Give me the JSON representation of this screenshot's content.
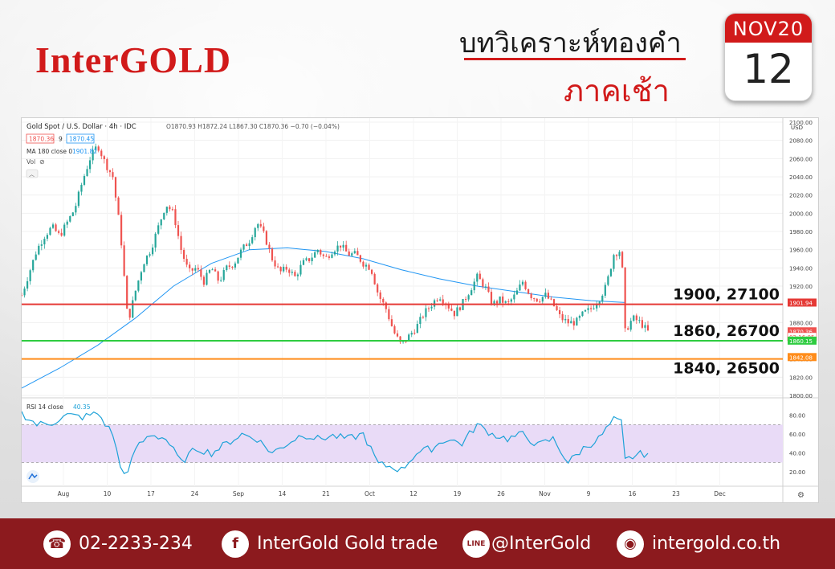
{
  "header": {
    "brand": "InterGOLD",
    "title_line1": "บทวิเคราะห์ทองคำ",
    "title_line2": "ภาคเช้า",
    "calendar_month": "NOV20",
    "calendar_day": "12"
  },
  "chart_info": {
    "symbol_line": "Gold Spot / U.S. Dollar · 4h · IDC",
    "ohlc": "O1870.93  H1872.24  L1867.30  C1870.36  −0.70 (−0.04%)",
    "bid": "1870.36",
    "spread": "9",
    "ask": "1870.45",
    "ma_label": "MA 180 close 0",
    "ma_value": "1901.82",
    "vol_label": "Vol",
    "rsi_label": "RSI 14 close",
    "rsi_value": "40.35",
    "currency": "USD",
    "price_tags": {
      "ma": "1901.94",
      "close": "1870.36",
      "countdown": "02:16:05",
      "green": "1860.15",
      "orange": "1842.08"
    }
  },
  "footer": {
    "phone": "02-2233-234",
    "facebook": "InterGold Gold trade",
    "line": "@InterGold",
    "website": "intergold.co.th"
  },
  "colors": {
    "brand_red": "#d11a1a",
    "footer_bg": "#8c1a1e",
    "up": "#26a69a",
    "down": "#ef5350",
    "ma": "#2196f3",
    "resistance": "#e53935",
    "support1": "#2ecc40",
    "support2": "#ff8c1a",
    "rsi": "#1ea2d8",
    "rsi_band": "#e9dbf7"
  },
  "chart_data": {
    "type": "candlestick",
    "timeframe": "4h",
    "y_axis": {
      "min": 1800,
      "max": 2100,
      "ticks": [
        1800,
        1820,
        1840,
        1860,
        1880,
        1900,
        1920,
        1940,
        1960,
        1980,
        2000,
        2020,
        2040,
        2060,
        2080,
        2100
      ]
    },
    "x_labels": [
      "Aug",
      "10",
      "17",
      "24",
      "Sep",
      "14",
      "21",
      "Oct",
      "12",
      "19",
      "26",
      "Nov",
      "9",
      "16",
      "23",
      "Dec"
    ],
    "price_path": [
      [
        0,
        1910
      ],
      [
        4,
        1935
      ],
      [
        8,
        1960
      ],
      [
        12,
        1975
      ],
      [
        16,
        1985
      ],
      [
        20,
        1975
      ],
      [
        24,
        1990
      ],
      [
        28,
        2005
      ],
      [
        32,
        2035
      ],
      [
        36,
        2060
      ],
      [
        40,
        2075
      ],
      [
        44,
        2055
      ],
      [
        48,
        2040
      ],
      [
        52,
        1980
      ],
      [
        56,
        1880
      ],
      [
        60,
        1915
      ],
      [
        64,
        1945
      ],
      [
        68,
        1960
      ],
      [
        72,
        1985
      ],
      [
        76,
        2010
      ],
      [
        80,
        2000
      ],
      [
        84,
        1960
      ],
      [
        88,
        1935
      ],
      [
        92,
        1940
      ],
      [
        96,
        1925
      ],
      [
        100,
        1940
      ],
      [
        104,
        1925
      ],
      [
        108,
        1940
      ],
      [
        112,
        1945
      ],
      [
        116,
        1960
      ],
      [
        120,
        1970
      ],
      [
        124,
        1990
      ],
      [
        128,
        1975
      ],
      [
        132,
        1950
      ],
      [
        136,
        1935
      ],
      [
        140,
        1940
      ],
      [
        144,
        1930
      ],
      [
        148,
        1945
      ],
      [
        152,
        1950
      ],
      [
        156,
        1960
      ],
      [
        160,
        1950
      ],
      [
        164,
        1960
      ],
      [
        168,
        1965
      ],
      [
        172,
        1955
      ],
      [
        176,
        1955
      ],
      [
        180,
        1945
      ],
      [
        184,
        1940
      ],
      [
        188,
        1910
      ],
      [
        192,
        1895
      ],
      [
        196,
        1870
      ],
      [
        200,
        1855
      ],
      [
        204,
        1865
      ],
      [
        208,
        1875
      ],
      [
        212,
        1890
      ],
      [
        216,
        1900
      ],
      [
        220,
        1910
      ],
      [
        224,
        1900
      ],
      [
        228,
        1890
      ],
      [
        232,
        1900
      ],
      [
        236,
        1915
      ],
      [
        240,
        1930
      ],
      [
        244,
        1920
      ],
      [
        248,
        1900
      ],
      [
        252,
        1905
      ],
      [
        256,
        1900
      ],
      [
        260,
        1910
      ],
      [
        264,
        1925
      ],
      [
        268,
        1910
      ],
      [
        272,
        1905
      ],
      [
        276,
        1910
      ],
      [
        280,
        1900
      ],
      [
        284,
        1885
      ],
      [
        288,
        1880
      ],
      [
        292,
        1880
      ],
      [
        296,
        1890
      ],
      [
        300,
        1895
      ],
      [
        304,
        1905
      ],
      [
        308,
        1920
      ],
      [
        312,
        1955
      ],
      [
        316,
        1960
      ],
      [
        318,
        1870
      ],
      [
        322,
        1885
      ],
      [
        326,
        1880
      ],
      [
        330,
        1870
      ]
    ],
    "ma180_path": [
      [
        0,
        1808
      ],
      [
        20,
        1830
      ],
      [
        40,
        1855
      ],
      [
        60,
        1885
      ],
      [
        80,
        1920
      ],
      [
        100,
        1945
      ],
      [
        120,
        1960
      ],
      [
        140,
        1962
      ],
      [
        160,
        1958
      ],
      [
        180,
        1950
      ],
      [
        200,
        1938
      ],
      [
        220,
        1928
      ],
      [
        240,
        1920
      ],
      [
        260,
        1914
      ],
      [
        280,
        1908
      ],
      [
        300,
        1904
      ],
      [
        318,
        1902
      ]
    ],
    "levels": [
      {
        "price": 1900,
        "label": "1900, 27100",
        "color": "#e53935"
      },
      {
        "price": 1860,
        "label": "1860, 26700",
        "color": "#2ecc40"
      },
      {
        "price": 1840,
        "label": "1840, 26500",
        "color": "#ff8c1a"
      }
    ],
    "rsi": {
      "label": "RSI 14 close",
      "current": 40.35,
      "upper_band": 70,
      "lower_band": 30,
      "ticks": [
        20,
        40,
        60,
        80
      ],
      "path": [
        [
          0,
          82
        ],
        [
          8,
          70
        ],
        [
          16,
          72
        ],
        [
          24,
          80
        ],
        [
          32,
          78
        ],
        [
          40,
          82
        ],
        [
          48,
          60
        ],
        [
          52,
          25
        ],
        [
          56,
          18
        ],
        [
          60,
          45
        ],
        [
          68,
          60
        ],
        [
          76,
          55
        ],
        [
          84,
          30
        ],
        [
          92,
          45
        ],
        [
          100,
          40
        ],
        [
          108,
          50
        ],
        [
          116,
          60
        ],
        [
          124,
          55
        ],
        [
          132,
          40
        ],
        [
          140,
          50
        ],
        [
          148,
          60
        ],
        [
          156,
          55
        ],
        [
          164,
          58
        ],
        [
          172,
          55
        ],
        [
          180,
          60
        ],
        [
          188,
          28
        ],
        [
          196,
          25
        ],
        [
          200,
          22
        ],
        [
          208,
          40
        ],
        [
          216,
          45
        ],
        [
          224,
          55
        ],
        [
          232,
          50
        ],
        [
          240,
          70
        ],
        [
          248,
          60
        ],
        [
          256,
          55
        ],
        [
          264,
          60
        ],
        [
          272,
          48
        ],
        [
          280,
          55
        ],
        [
          288,
          30
        ],
        [
          296,
          45
        ],
        [
          304,
          55
        ],
        [
          312,
          75
        ],
        [
          316,
          72
        ],
        [
          318,
          32
        ],
        [
          324,
          38
        ],
        [
          330,
          40
        ]
      ]
    }
  }
}
